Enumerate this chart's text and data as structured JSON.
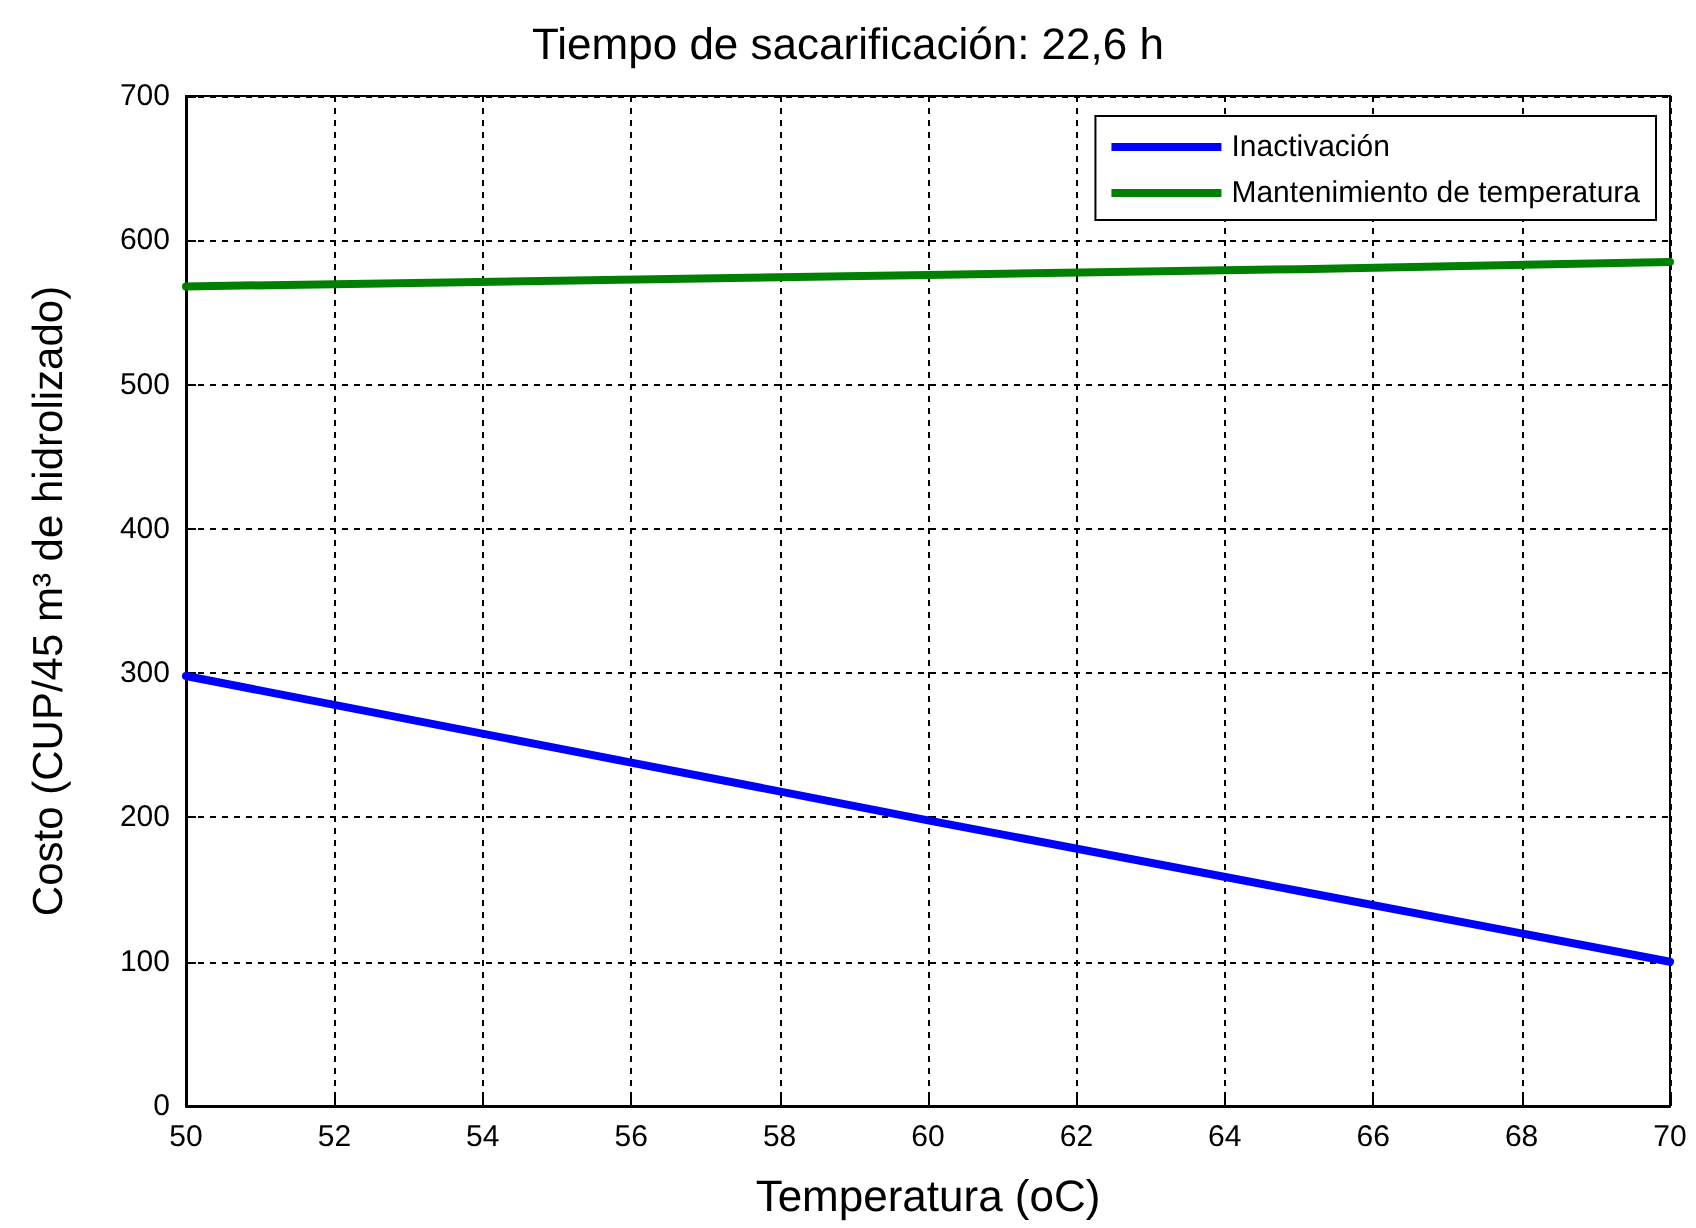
{
  "chart_data": {
    "type": "line",
    "title": "Tiempo de sacarificación: 22,6 h",
    "xlabel": "Temperatura (oC)",
    "ylabel": "Costo (CUP/45 m³ de hidrolizado)",
    "x": [
      50,
      55,
      60,
      65,
      70
    ],
    "series": [
      {
        "name": "Inactivación",
        "color": "#0000ff",
        "values": [
          298,
          248,
          198,
          149,
          100
        ]
      },
      {
        "name": "Mantenimiento de temperatura",
        "color": "#008000",
        "values": [
          568,
          572,
          576,
          580,
          585
        ]
      }
    ],
    "xlim": [
      50,
      70
    ],
    "xticks": [
      50,
      52,
      54,
      56,
      58,
      60,
      62,
      64,
      66,
      68,
      70
    ],
    "ylim": [
      0,
      700
    ],
    "yticks": [
      0,
      100,
      200,
      300,
      400,
      500,
      600,
      700
    ],
    "grid": true,
    "legend": "top right",
    "marker": "none",
    "line_style": "solid"
  }
}
